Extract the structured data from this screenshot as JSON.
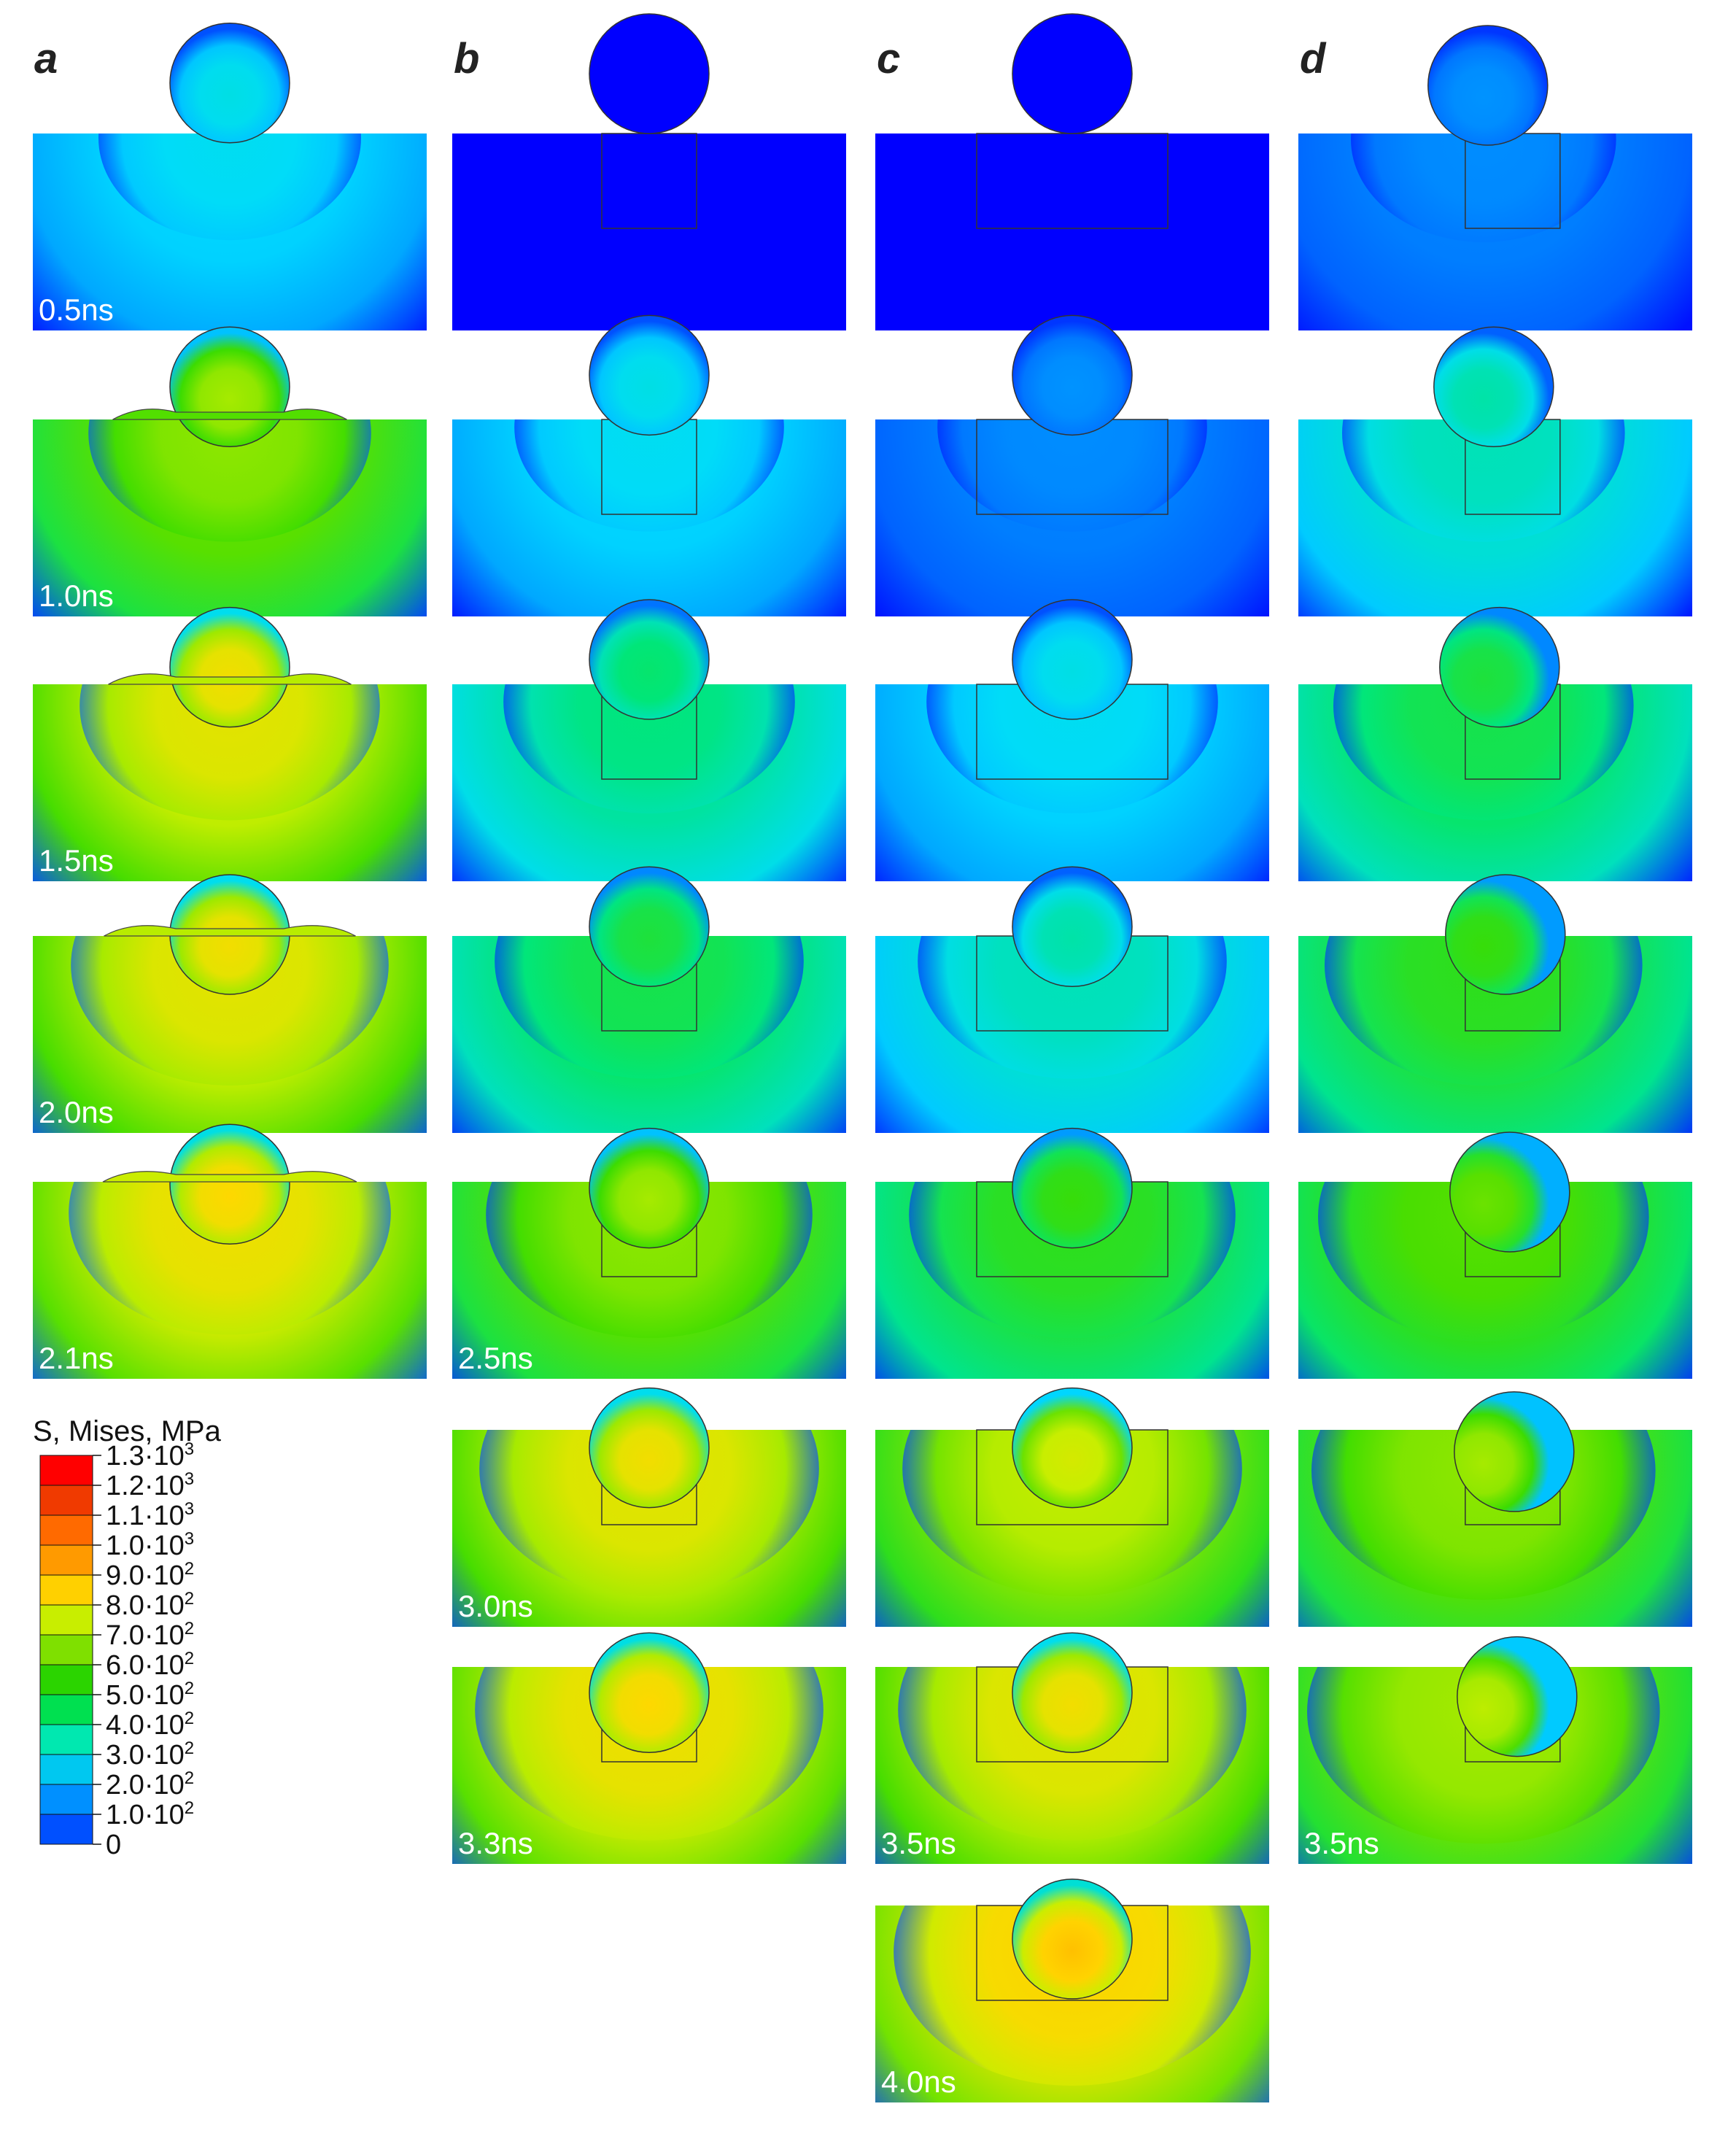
{
  "columns": [
    {
      "letter": "a",
      "variant": "a",
      "panels": [
        {
          "time": "0.5ns",
          "stage": 0.12,
          "level": 0.3
        },
        {
          "time": "1.0ns",
          "stage": 0.35,
          "level": 0.6
        },
        {
          "time": "1.5ns",
          "stage": 0.55,
          "level": 0.7
        },
        {
          "time": "2.0ns",
          "stage": 0.75,
          "level": 0.7
        },
        {
          "time": "2.1ns",
          "stage": 0.8,
          "level": 0.72
        }
      ]
    },
    {
      "letter": "b",
      "variant": "b",
      "panels": [
        {
          "time": "",
          "stage": 0.0,
          "level": 0.0
        },
        {
          "time": "",
          "stage": 0.2,
          "level": 0.3
        },
        {
          "time": "",
          "stage": 0.45,
          "level": 0.4
        },
        {
          "time": "",
          "stage": 0.65,
          "level": 0.45
        },
        {
          "time": "2.5ns",
          "stage": 0.85,
          "level": 0.6
        },
        {
          "time": "3.0ns",
          "stage": 1.0,
          "level": 0.7
        },
        {
          "time": "3.3ns",
          "stage": 1.1,
          "level": 0.72
        }
      ]
    },
    {
      "letter": "c",
      "variant": "c",
      "panels": [
        {
          "time": "",
          "stage": 0.0,
          "level": 0.0
        },
        {
          "time": "",
          "stage": 0.2,
          "level": 0.2
        },
        {
          "time": "",
          "stage": 0.45,
          "level": 0.3
        },
        {
          "time": "",
          "stage": 0.65,
          "level": 0.35
        },
        {
          "time": "",
          "stage": 0.85,
          "level": 0.5
        },
        {
          "time": "",
          "stage": 1.0,
          "level": 0.65
        },
        {
          "time": "3.5ns",
          "stage": 1.1,
          "level": 0.7
        },
        {
          "time": "4.0ns",
          "stage": 1.2,
          "level": 0.75
        }
      ]
    },
    {
      "letter": "d",
      "variant": "d",
      "panels": [
        {
          "time": "",
          "stage": 0.15,
          "level": 0.2
        },
        {
          "time": "",
          "stage": 0.35,
          "level": 0.35
        },
        {
          "time": "",
          "stage": 0.55,
          "level": 0.45
        },
        {
          "time": "",
          "stage": 0.75,
          "level": 0.5
        },
        {
          "time": "",
          "stage": 0.9,
          "level": 0.55
        },
        {
          "time": "",
          "stage": 1.05,
          "level": 0.6
        },
        {
          "time": "3.5ns",
          "stage": 1.15,
          "level": 0.62
        }
      ]
    }
  ],
  "legend": {
    "title": "S, Mises, MPa",
    "levels": [
      {
        "mantissa": "1.3·10",
        "exp": "3",
        "color": "#ff0000"
      },
      {
        "mantissa": "1.2·10",
        "exp": "3",
        "color": "#f03a00"
      },
      {
        "mantissa": "1.1·10",
        "exp": "3",
        "color": "#ff6a00"
      },
      {
        "mantissa": "1.0·10",
        "exp": "3",
        "color": "#ff9a00"
      },
      {
        "mantissa": "9.0·10",
        "exp": "2",
        "color": "#ffd000"
      },
      {
        "mantissa": "8.0·10",
        "exp": "2",
        "color": "#c8ee00"
      },
      {
        "mantissa": "7.0·10",
        "exp": "2",
        "color": "#7fe000"
      },
      {
        "mantissa": "6.0·10",
        "exp": "2",
        "color": "#2bd400"
      },
      {
        "mantissa": "5.0·10",
        "exp": "2",
        "color": "#00e050"
      },
      {
        "mantissa": "4.0·10",
        "exp": "2",
        "color": "#00e8b0"
      },
      {
        "mantissa": "3.0·10",
        "exp": "2",
        "color": "#00c8f0"
      },
      {
        "mantissa": "2.0·10",
        "exp": "2",
        "color": "#0090ff"
      },
      {
        "mantissa": "1.0·10",
        "exp": "2",
        "color": "#0050ff"
      },
      {
        "mantissa": "0",
        "exp": "",
        "color": "#0000ff"
      }
    ]
  }
}
